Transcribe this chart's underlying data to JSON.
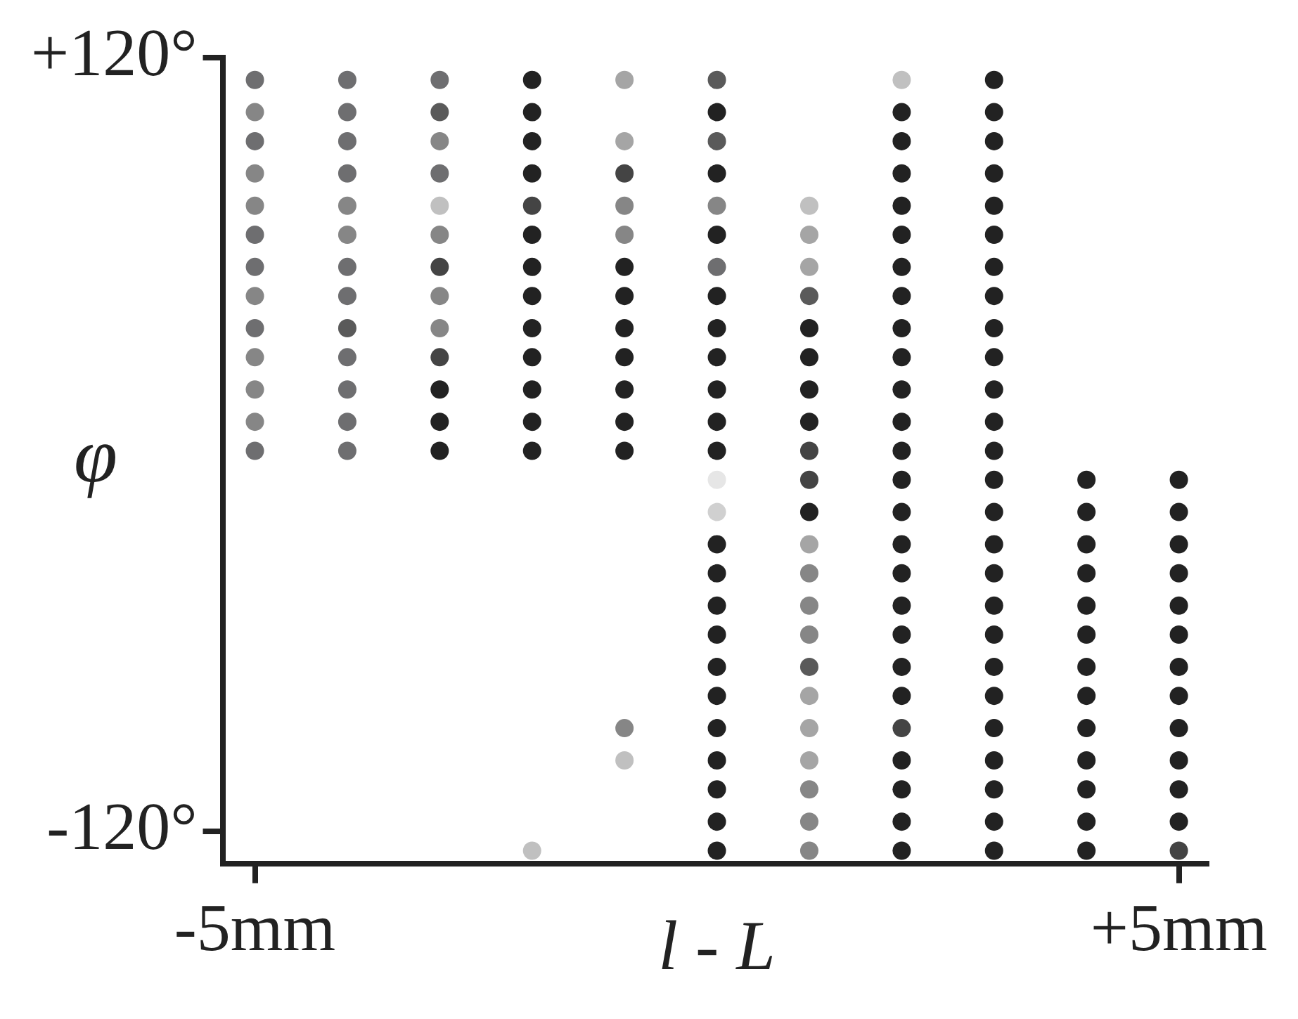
{
  "chart_data": {
    "type": "scatter",
    "xlabel": "l - L",
    "ylabel": "φ",
    "marker": "circle",
    "legend": false,
    "xlim": [
      -5.35,
      5.3
    ],
    "ylim": [
      -130,
      120
    ],
    "xticks": [
      {
        "value": -5,
        "label": "-5mm"
      },
      {
        "value": 5,
        "label": "+5mm"
      }
    ],
    "yticks": [
      {
        "value": -120,
        "label": "-120°"
      },
      {
        "value": 120,
        "label": "+120°"
      }
    ],
    "series": [
      {
        "x": [
          -5,
          -5,
          -5,
          -5,
          -5,
          -5,
          -5,
          -5,
          -5,
          -5,
          -5,
          -5,
          -5
        ],
        "values": [
          113,
          103,
          94,
          84,
          74,
          65,
          55,
          46,
          36,
          27,
          17,
          7,
          -2
        ],
        "colors": [
          "#6e6e70",
          "#868686",
          "#6e6e70",
          "#868686",
          "#868686",
          "#6e6e70",
          "#6e6e70",
          "#868686",
          "#6e6e70",
          "#868686",
          "#868686",
          "#868686",
          "#6e6e70"
        ]
      },
      {
        "x": [
          -4,
          -4,
          -4,
          -4,
          -4,
          -4,
          -4,
          -4,
          -4,
          -4,
          -4,
          -4,
          -4
        ],
        "values": [
          113,
          103,
          94,
          84,
          74,
          65,
          55,
          46,
          36,
          27,
          17,
          7,
          -2
        ],
        "colors": [
          "#6e6e70",
          "#6e6e70",
          "#6e6e70",
          "#6e6e70",
          "#868686",
          "#868686",
          "#6e6e70",
          "#6e6e70",
          "#5a5a5a",
          "#6e6e70",
          "#6e6e70",
          "#6e6e70",
          "#6e6e70"
        ]
      },
      {
        "x": [
          -3,
          -3,
          -3,
          -3,
          -3,
          -3,
          -3,
          -3,
          -3,
          -3,
          -3,
          -3,
          -3
        ],
        "values": [
          113,
          103,
          94,
          84,
          74,
          65,
          55,
          46,
          36,
          27,
          17,
          7,
          -2
        ],
        "colors": [
          "#6e6e70",
          "#5a5a5a",
          "#868686",
          "#6e6e70",
          "#c0c0c0",
          "#868686",
          "#444444",
          "#868686",
          "#868686",
          "#444444",
          "#222222",
          "#222222",
          "#222222"
        ]
      },
      {
        "x": [
          -2,
          -2,
          -2,
          -2,
          -2,
          -2,
          -2,
          -2,
          -2,
          -2,
          -2,
          -2,
          -2,
          -2
        ],
        "values": [
          113,
          103,
          94,
          84,
          74,
          65,
          55,
          46,
          36,
          27,
          17,
          7,
          -2,
          -126
        ],
        "colors": [
          "#222222",
          "#222222",
          "#222222",
          "#222222",
          "#444444",
          "#222222",
          "#222222",
          "#222222",
          "#222222",
          "#222222",
          "#222222",
          "#222222",
          "#222222",
          "#c0c0c0"
        ]
      },
      {
        "x": [
          -1,
          -1,
          -1,
          -1,
          -1,
          -1,
          -1,
          -1,
          -1,
          -1,
          -1,
          -1,
          -1,
          -1
        ],
        "values": [
          113,
          94,
          84,
          74,
          65,
          55,
          46,
          36,
          27,
          17,
          7,
          -2,
          -88,
          -98
        ],
        "colors": [
          "#a5a5a5",
          "#a5a5a5",
          "#444444",
          "#868686",
          "#868686",
          "#222222",
          "#222222",
          "#222222",
          "#222222",
          "#222222",
          "#222222",
          "#222222",
          "#868686",
          "#c0c0c0"
        ]
      },
      {
        "x": [
          0,
          0,
          0,
          0,
          0,
          0,
          0,
          0,
          0,
          0,
          0,
          0,
          0,
          0,
          0,
          0,
          0,
          0,
          0,
          0,
          0,
          0,
          0,
          0,
          0,
          0
        ],
        "values": [
          113,
          103,
          94,
          84,
          74,
          65,
          55,
          46,
          36,
          27,
          17,
          7,
          -2,
          -11,
          -21,
          -31,
          -40,
          -50,
          -59,
          -69,
          -78,
          -88,
          -98,
          -107,
          -117,
          -126
        ],
        "colors": [
          "#5a5a5a",
          "#222222",
          "#5a5a5a",
          "#222222",
          "#868686",
          "#222222",
          "#6e6e70",
          "#222222",
          "#222222",
          "#222222",
          "#222222",
          "#222222",
          "#222222",
          "#e6e6e6",
          "#d0d0d0",
          "#222222",
          "#222222",
          "#222222",
          "#222222",
          "#222222",
          "#222222",
          "#222222",
          "#222222",
          "#222222",
          "#222222",
          "#222222"
        ]
      },
      {
        "x": [
          1,
          1,
          1,
          1,
          1,
          1,
          1,
          1,
          1,
          1,
          1,
          1,
          1,
          1,
          1,
          1,
          1,
          1,
          1,
          1,
          1,
          1
        ],
        "values": [
          74,
          65,
          55,
          46,
          36,
          27,
          17,
          7,
          -2,
          -11,
          -21,
          -31,
          -40,
          -50,
          -59,
          -69,
          -78,
          -88,
          -98,
          -107,
          -117,
          -126
        ],
        "colors": [
          "#c0c0c0",
          "#a5a5a5",
          "#a5a5a5",
          "#5a5a5a",
          "#222222",
          "#222222",
          "#222222",
          "#222222",
          "#444444",
          "#444444",
          "#222222",
          "#a5a5a5",
          "#868686",
          "#868686",
          "#868686",
          "#5a5a5a",
          "#a5a5a5",
          "#a5a5a5",
          "#a5a5a5",
          "#868686",
          "#868686",
          "#868686"
        ]
      },
      {
        "x": [
          2,
          2,
          2,
          2,
          2,
          2,
          2,
          2,
          2,
          2,
          2,
          2,
          2,
          2,
          2,
          2,
          2,
          2,
          2,
          2,
          2,
          2,
          2,
          2,
          2,
          2
        ],
        "values": [
          113,
          103,
          94,
          84,
          74,
          65,
          55,
          46,
          36,
          27,
          17,
          7,
          -2,
          -11,
          -21,
          -31,
          -40,
          -50,
          -59,
          -69,
          -78,
          -88,
          -98,
          -107,
          -117,
          -126
        ],
        "colors": [
          "#c0c0c0",
          "#222222",
          "#222222",
          "#222222",
          "#222222",
          "#222222",
          "#222222",
          "#222222",
          "#222222",
          "#222222",
          "#222222",
          "#222222",
          "#222222",
          "#222222",
          "#222222",
          "#222222",
          "#222222",
          "#222222",
          "#222222",
          "#222222",
          "#222222",
          "#444444",
          "#222222",
          "#222222",
          "#222222",
          "#222222"
        ]
      },
      {
        "x": [
          3,
          3,
          3,
          3,
          3,
          3,
          3,
          3,
          3,
          3,
          3,
          3,
          3,
          3,
          3,
          3,
          3,
          3,
          3,
          3,
          3,
          3,
          3,
          3,
          3,
          3
        ],
        "values": [
          113,
          103,
          94,
          84,
          74,
          65,
          55,
          46,
          36,
          27,
          17,
          7,
          -2,
          -11,
          -21,
          -31,
          -40,
          -50,
          -59,
          -69,
          -78,
          -88,
          -98,
          -107,
          -117,
          -126
        ],
        "colors": [
          "#222222",
          "#222222",
          "#222222",
          "#222222",
          "#222222",
          "#222222",
          "#222222",
          "#222222",
          "#222222",
          "#222222",
          "#222222",
          "#222222",
          "#222222",
          "#222222",
          "#222222",
          "#222222",
          "#222222",
          "#222222",
          "#222222",
          "#222222",
          "#222222",
          "#222222",
          "#222222",
          "#222222",
          "#222222",
          "#222222"
        ]
      },
      {
        "x": [
          4,
          4,
          4,
          4,
          4,
          4,
          4,
          4,
          4,
          4,
          4,
          4,
          4
        ],
        "values": [
          -11,
          -21,
          -31,
          -40,
          -50,
          -59,
          -69,
          -78,
          -88,
          -98,
          -107,
          -117,
          -126
        ],
        "colors": [
          "#222222",
          "#222222",
          "#222222",
          "#222222",
          "#222222",
          "#222222",
          "#222222",
          "#222222",
          "#222222",
          "#222222",
          "#222222",
          "#222222",
          "#222222"
        ]
      },
      {
        "x": [
          5,
          5,
          5,
          5,
          5,
          5,
          5,
          5,
          5,
          5,
          5,
          5,
          5
        ],
        "values": [
          -11,
          -21,
          -31,
          -40,
          -50,
          -59,
          -69,
          -78,
          -88,
          -98,
          -107,
          -117,
          -126
        ],
        "colors": [
          "#222222",
          "#222222",
          "#222222",
          "#222222",
          "#222222",
          "#222222",
          "#222222",
          "#222222",
          "#222222",
          "#222222",
          "#222222",
          "#222222",
          "#444444"
        ]
      }
    ]
  }
}
